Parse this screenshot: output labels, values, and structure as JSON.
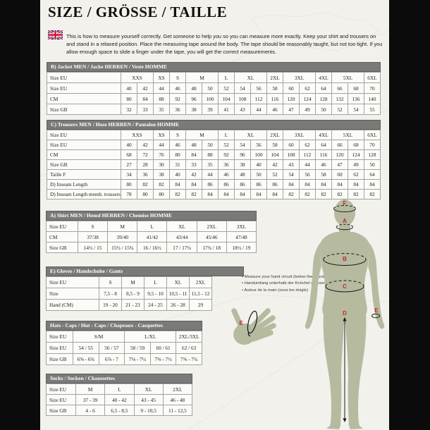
{
  "title": "SIZE / GRÖSSE / TAILLE",
  "intro": "This is how to measure yourself correctly. Get someone to help you so you can measure more exactly. Keep your shirt and trousers on and stand in a relaxed position. Place the measuring tape around the body. The tape should be reasonably taught, but not too tight. If you allow enough space to slide a finger under the tape, you will get the correct measurements.",
  "tables": {
    "jacket": {
      "title": "B) Jacket MEN / Jacke HERREN / Veste HOMME",
      "rows": [
        {
          "label": "Size EU",
          "cells": [
            "XXS",
            "XS",
            "S",
            "M",
            "L",
            "XL",
            "2XL",
            "3XL",
            "4XL",
            "5XL",
            "6XL"
          ],
          "spans": [
            2,
            1,
            1,
            2,
            1,
            2,
            1,
            2,
            1,
            2,
            1
          ]
        },
        {
          "label": "Size EU",
          "cells": [
            "40",
            "42",
            "44",
            "46",
            "48",
            "50",
            "52",
            "54",
            "56",
            "58",
            "60",
            "62",
            "64",
            "66",
            "68",
            "70"
          ]
        },
        {
          "label": "CM",
          "cells": [
            "80",
            "84",
            "88",
            "92",
            "96",
            "100",
            "104",
            "108",
            "112",
            "116",
            "120",
            "124",
            "128",
            "132",
            "136",
            "140"
          ]
        },
        {
          "label": "Size GB",
          "cells": [
            "32",
            "33",
            "35",
            "36",
            "38",
            "39",
            "41",
            "43",
            "44",
            "46",
            "47",
            "49",
            "50",
            "52",
            "54",
            "55"
          ]
        }
      ]
    },
    "trousers": {
      "title": "C) Trousers MEN / Hose HERREN / Pantalon HOMME",
      "rows": [
        {
          "label": "Size EU",
          "cells": [
            "XXS",
            "XS",
            "S",
            "M",
            "L",
            "XL",
            "2XL",
            "3XL",
            "4XL",
            "5XL",
            "6XL"
          ],
          "spans": [
            2,
            1,
            1,
            2,
            1,
            2,
            1,
            2,
            1,
            2,
            1
          ]
        },
        {
          "label": "Size EU",
          "cells": [
            "40",
            "42",
            "44",
            "46",
            "48",
            "50",
            "52",
            "54",
            "56",
            "58",
            "60",
            "62",
            "64",
            "66",
            "68",
            "70"
          ]
        },
        {
          "label": "CM",
          "cells": [
            "68",
            "72",
            "76",
            "80",
            "84",
            "88",
            "92",
            "96",
            "100",
            "104",
            "108",
            "112",
            "116",
            "120",
            "124",
            "128"
          ]
        },
        {
          "label": "Size GB",
          "cells": [
            "27",
            "28",
            "30",
            "31",
            "33",
            "35",
            "36",
            "38",
            "40",
            "42",
            "43",
            "44",
            "46",
            "47",
            "49",
            "50"
          ]
        },
        {
          "label": "Taille F",
          "cells": [
            "34",
            "36",
            "38",
            "40",
            "42",
            "44",
            "46",
            "48",
            "50",
            "52",
            "54",
            "56",
            "58",
            "60",
            "62",
            "64"
          ]
        },
        {
          "label": "D) Inseam Length",
          "cells": [
            "80",
            "82",
            "82",
            "84",
            "84",
            "86",
            "86",
            "86",
            "86",
            "86",
            "84",
            "84",
            "84",
            "84",
            "84",
            "84"
          ]
        },
        {
          "label": "D) Inseam Length memb. trousers",
          "cells": [
            "78",
            "80",
            "80",
            "82",
            "82",
            "84",
            "84",
            "84",
            "84",
            "84",
            "82",
            "82",
            "82",
            "82",
            "82",
            "82"
          ]
        }
      ]
    },
    "shirt": {
      "title": "A) Shirt MEN / Hemd HERREN / Chemise HOMME",
      "rows": [
        {
          "label": "Size EU",
          "cells": [
            "S",
            "M",
            "L",
            "XL",
            "2XL",
            "3XL"
          ]
        },
        {
          "label": "CM",
          "cells": [
            "37/38",
            "39/40",
            "41/42",
            "43/44",
            "45/46",
            "47/48"
          ]
        },
        {
          "label": "Size GB",
          "cells": [
            "14½ / 15",
            "15½ / 15¾",
            "16 / 16½",
            "17 / 17¼",
            "17¾ / 18",
            "18½ / 19"
          ]
        }
      ]
    },
    "gloves": {
      "title": "E) Gloves / Handschuhe / Gants",
      "rows": [
        {
          "label": "Size EU",
          "cells": [
            "S",
            "M",
            "L",
            "XL",
            "2XL"
          ]
        },
        {
          "label": "Size",
          "cells": [
            "7,5 - 8",
            "8,5 - 9",
            "9,5 - 10",
            "10,5 - 11",
            "11,5 - 12"
          ]
        },
        {
          "label": "Hand (CM)",
          "cells": [
            "19 - 20",
            "21 - 23",
            "24 - 25",
            "26 - 28",
            "29"
          ]
        }
      ]
    },
    "hats": {
      "title": "Hats - Caps / Hut - Caps / Chapeaux - Casquettes",
      "rows": [
        {
          "label": "Size EU",
          "cells": [
            "S/M",
            "L/XL",
            "2XL/3XL"
          ],
          "spans": [
            2,
            2,
            1
          ]
        },
        {
          "label": "Size EU",
          "cells": [
            "54 / 55",
            "56 / 57",
            "58 / 59",
            "60 / 61",
            "62 / 63"
          ]
        },
        {
          "label": "Size GB",
          "cells": [
            "6⅝ - 6¾",
            "6⅞ - 7",
            "7⅛ - 7¼",
            "7⅜ - 7½",
            "7⅝ - 7¾"
          ]
        }
      ]
    },
    "socks": {
      "title": "Socks / Socken / Chaussettes",
      "rows": [
        {
          "label": "Size EU",
          "cells": [
            "M",
            "L",
            "XL",
            "2XL"
          ]
        },
        {
          "label": "Size EU",
          "cells": [
            "37 - 39",
            "40 - 42",
            "43 - 45",
            "46 - 48"
          ]
        },
        {
          "label": "Size GB",
          "cells": [
            "4 - 6",
            "6,5 - 8,5",
            "9 - 10,5",
            "11 - 12,5"
          ]
        }
      ]
    }
  },
  "gloves_notes": [
    "• Measure your hand circuit (below the knuckles)",
    "• Handumfang unterhalb der Knöchel messen.",
    "• Autour de la main (sous les doigts)"
  ],
  "figure": {
    "labels": {
      "head": "F",
      "neck": "A",
      "chest": "B",
      "waist": "C",
      "inseam": "D",
      "wrist": "E",
      "hand": "E"
    }
  },
  "colors": {
    "accent_red": "#c1272d",
    "silhouette": "#b6ba9f",
    "header_bar": "#7a7a78",
    "page_bg": "#f2f1ec"
  }
}
